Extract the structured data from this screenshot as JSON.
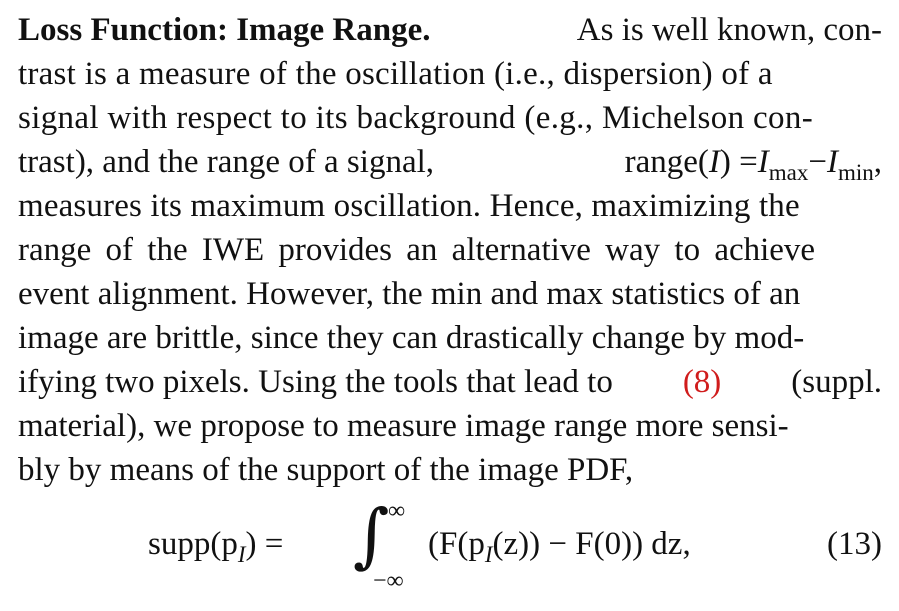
{
  "paragraph": {
    "heading": "Loss Function: Image Range.",
    "lines": [
      [
        "As is well known, con-"
      ],
      [
        "trast is a measure of the oscillation (i.e., dispersion) of a"
      ],
      [
        "signal with respect to its background (e.g., Michelson con-"
      ],
      [
        "trast), and the range of a signal,",
        "range(",
        "I",
        ") = ",
        "I",
        "max",
        " − ",
        "I",
        "min",
        ","
      ],
      [
        "measures its maximum oscillation. Hence, maximizing the"
      ],
      [
        "range of the IWE provides an alternative way to achieve"
      ],
      [
        "event alignment. However, the min and max statistics of an"
      ],
      [
        "image are brittle, since they can drastically change by mod-"
      ],
      [
        "ifying two pixels. Using the tools that lead to",
        "(8)",
        "(suppl."
      ],
      [
        "material), we propose to measure image range more sensi-"
      ],
      [
        "bly by means of the support of the image PDF,"
      ]
    ]
  },
  "equation": {
    "lhs": "supp(p",
    "lhs_sub": "I",
    "lhs_close": ") =",
    "upper": "∞",
    "lower": "−∞",
    "rhs": "(F(p",
    "rhs_sub": "I",
    "rhs_rest": "(z)) − F(0)) dz,",
    "number": "(13)"
  }
}
